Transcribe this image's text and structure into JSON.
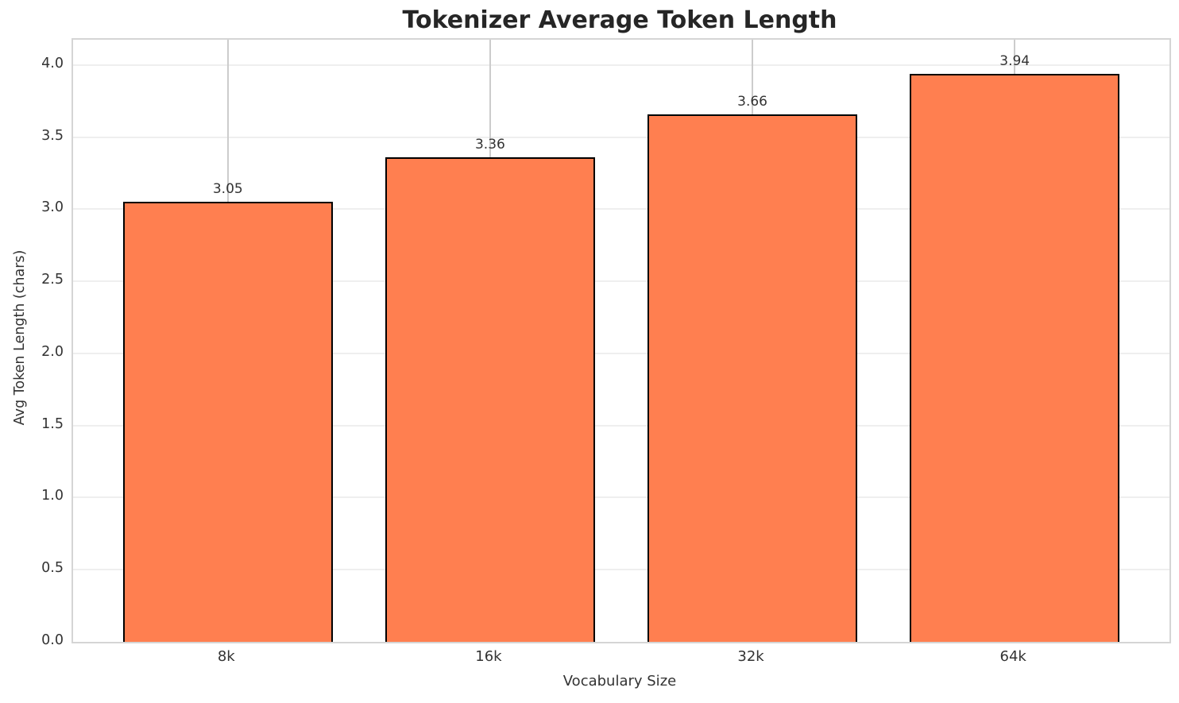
{
  "chart_data": {
    "type": "bar",
    "title": "Tokenizer Average Token Length",
    "xlabel": "Vocabulary Size",
    "ylabel": "Avg Token Length (chars)",
    "categories": [
      "8k",
      "16k",
      "32k",
      "64k"
    ],
    "values": [
      3.05,
      3.36,
      3.66,
      3.94
    ],
    "value_labels": [
      "3.05",
      "3.36",
      "3.66",
      "3.94"
    ],
    "ytick_values": [
      0.0,
      0.5,
      1.0,
      1.5,
      2.0,
      2.5,
      3.0,
      3.5,
      4.0
    ],
    "ytick_labels": [
      "0.0",
      "0.5",
      "1.0",
      "1.5",
      "2.0",
      "2.5",
      "3.0",
      "3.5",
      "4.0"
    ],
    "ylim": [
      0,
      4.176
    ],
    "grid": true,
    "legend": "none",
    "colors": {
      "bar_fill": "#FF7F50",
      "bar_edge": "#000000",
      "horizontal_grid": "#efefef",
      "vertical_grid": "#cccccc",
      "spine": "#d5d5d5",
      "tick_text": "#333333",
      "title_text": "#262626"
    }
  }
}
